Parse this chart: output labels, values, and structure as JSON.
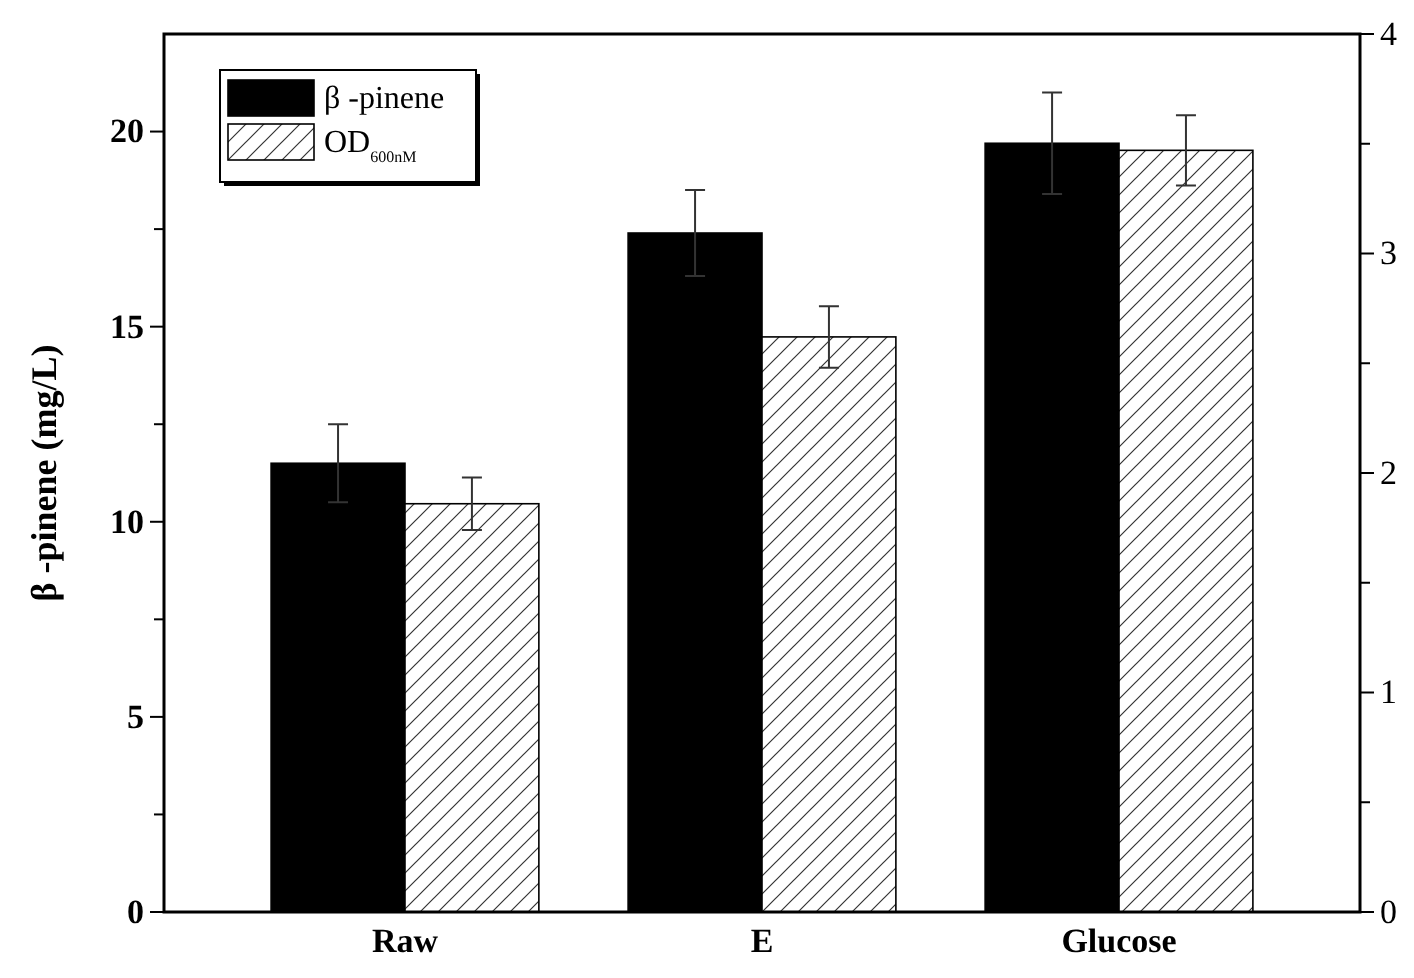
{
  "chart_data": {
    "type": "bar",
    "categories": [
      "Raw",
      "E",
      "Glucose"
    ],
    "ylabel": "β -pinene (mg/L)",
    "series": [
      {
        "name": "β -pinene",
        "color": "#000000",
        "values": [
          11.5,
          17.4,
          19.7
        ],
        "errors": [
          1.0,
          1.1,
          1.3
        ]
      },
      {
        "name": "OD$_{600nM}$",
        "color": "#ffffff",
        "axis": "y2",
        "values": [
          1.86,
          2.62,
          3.47
        ],
        "errors": [
          0.12,
          0.14,
          0.16
        ]
      }
    ],
    "ylim": [
      0,
      22.5
    ],
    "yticks": [
      0,
      {
        "value": 2.5,
        "label": null
      },
      5,
      {
        "value": 7.5,
        "label": null
      },
      10,
      {
        "value": 12.5,
        "label": null
      },
      15,
      {
        "value": 17.5,
        "label": null
      },
      20
    ],
    "y2lim": [
      0,
      4
    ],
    "y2ticks": [
      0,
      {
        "value": 0.5,
        "label": null
      },
      1,
      {
        "value": 1.5,
        "label": null
      },
      2,
      {
        "value": 2.5,
        "label": null
      },
      3,
      {
        "value": 3.5,
        "label": null
      },
      4
    ],
    "legend": "top left",
    "grid": false
  }
}
